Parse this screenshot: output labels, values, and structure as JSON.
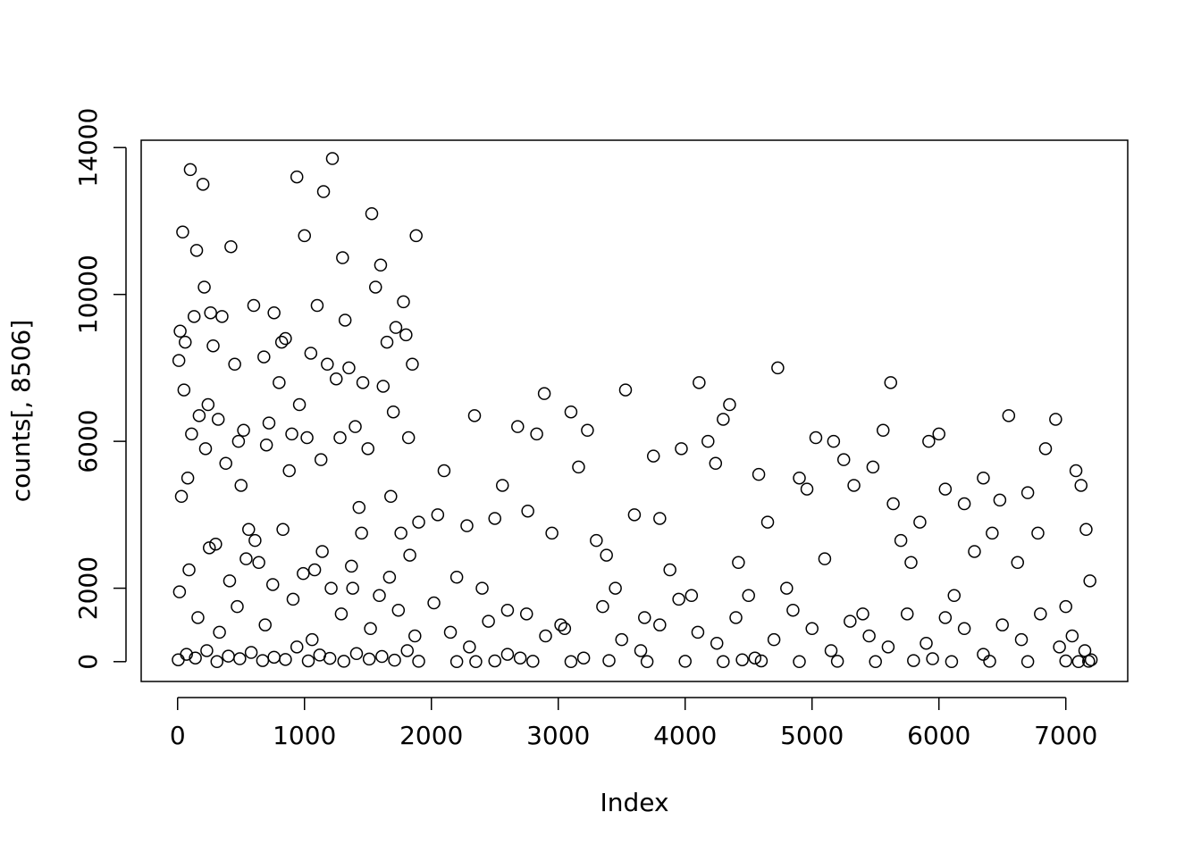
{
  "chart_data": {
    "type": "scatter",
    "x_label": "Index",
    "y_label": "counts[, 8506]",
    "xlim": [
      -287,
      7488
    ],
    "ylim": [
      -540,
      14200
    ],
    "xticks": [
      0,
      1000,
      2000,
      3000,
      4000,
      5000,
      6000,
      7000
    ],
    "yticks": [
      0,
      2000,
      6000,
      10000,
      14000
    ],
    "color": "#000000",
    "x": [
      10,
      20,
      30,
      40,
      50,
      60,
      80,
      100,
      110,
      130,
      150,
      170,
      200,
      210,
      220,
      240,
      260,
      280,
      300,
      320,
      350,
      380,
      420,
      450,
      480,
      500,
      520,
      560,
      600,
      640,
      680,
      700,
      720,
      760,
      800,
      820,
      850,
      880,
      900,
      940,
      960,
      1000,
      1020,
      1050,
      1080,
      1100,
      1130,
      1150,
      1180,
      1220,
      1250,
      1280,
      1300,
      1320,
      1350,
      1380,
      1400,
      1430,
      1460,
      1500,
      1530,
      1560,
      1600,
      1620,
      1650,
      1680,
      1700,
      1720,
      1760,
      1780,
      1800,
      1820,
      1850,
      1880,
      1900,
      15,
      90,
      160,
      250,
      330,
      410,
      470,
      540,
      610,
      690,
      750,
      830,
      910,
      990,
      1060,
      1140,
      1210,
      1290,
      1370,
      1450,
      1520,
      1590,
      1670,
      1740,
      1830,
      1870,
      5,
      70,
      140,
      230,
      310,
      400,
      490,
      580,
      670,
      760,
      850,
      940,
      1030,
      1120,
      1200,
      1310,
      1410,
      1510,
      1610,
      1710,
      1810,
      1900,
      2050,
      2100,
      2200,
      2280,
      2340,
      2400,
      2500,
      2560,
      2600,
      2680,
      2760,
      2830,
      2890,
      2950,
      3020,
      3100,
      3160,
      3230,
      3300,
      3380,
      3450,
      3530,
      3600,
      3680,
      3750,
      3800,
      3880,
      3970,
      4050,
      4110,
      4180,
      4240,
      4300,
      4350,
      4420,
      4500,
      4580,
      4650,
      4730,
      4800,
      4900,
      4960,
      5030,
      5100,
      5170,
      5250,
      5330,
      5400,
      5480,
      5560,
      5620,
      5640,
      5700,
      5780,
      5850,
      5920,
      6000,
      6050,
      6120,
      6200,
      6280,
      6350,
      6420,
      6480,
      6550,
      6620,
      6700,
      6780,
      6840,
      6920,
      7000,
      7080,
      7120,
      7160,
      7190,
      2020,
      2150,
      2300,
      2450,
      2600,
      2750,
      2900,
      3050,
      3200,
      3350,
      3500,
      3650,
      3800,
      3950,
      4100,
      4250,
      4400,
      4550,
      4700,
      4850,
      5000,
      5150,
      5300,
      5450,
      5600,
      5750,
      5900,
      6050,
      6200,
      6350,
      6500,
      6650,
      6800,
      6950,
      7050,
      7150,
      7200,
      2700,
      4450,
      5950,
      2200,
      2500,
      2800,
      3100,
      3400,
      3700,
      4000,
      4300,
      4600,
      4900,
      5200,
      5500,
      5800,
      6100,
      6400,
      6700,
      7000,
      7100,
      7180,
      2350
    ],
    "y": [
      8200,
      9000,
      4500,
      11700,
      7400,
      8700,
      5000,
      13400,
      6200,
      9400,
      11200,
      6700,
      13000,
      10200,
      5800,
      7000,
      9500,
      8600,
      3200,
      6600,
      9400,
      5400,
      11300,
      8100,
      6000,
      4800,
      6300,
      3600,
      9700,
      2700,
      8300,
      5900,
      6500,
      9500,
      7600,
      8700,
      8800,
      5200,
      6200,
      13200,
      7000,
      11600,
      6100,
      8400,
      2500,
      9700,
      5500,
      12800,
      8100,
      13700,
      7700,
      6100,
      11000,
      9300,
      8000,
      2000,
      6400,
      4200,
      7600,
      5800,
      12200,
      10200,
      10800,
      7500,
      8700,
      4500,
      6800,
      9100,
      3500,
      9800,
      8900,
      6100,
      8100,
      11600,
      3800,
      1900,
      2500,
      1200,
      3100,
      800,
      2200,
      1500,
      2800,
      3300,
      1000,
      2100,
      3600,
      1700,
      2400,
      600,
      3000,
      2000,
      1300,
      2600,
      3500,
      900,
      1800,
      2300,
      1400,
      2900,
      700,
      50,
      200,
      100,
      300,
      0,
      150,
      80,
      250,
      30,
      120,
      60,
      400,
      20,
      180,
      90,
      10,
      220,
      70,
      140,
      40,
      300,
      10,
      4000,
      5200,
      2300,
      3700,
      6700,
      2000,
      3900,
      4800,
      1400,
      6400,
      4100,
      6200,
      7300,
      3500,
      1000,
      6800,
      5300,
      6300,
      3300,
      2900,
      2000,
      7400,
      4000,
      1200,
      5600,
      3900,
      2500,
      5800,
      1800,
      7600,
      6000,
      5400,
      6600,
      7000,
      2700,
      1800,
      5100,
      3800,
      8000,
      2000,
      5000,
      4700,
      6100,
      2800,
      6000,
      5500,
      4800,
      1300,
      5300,
      6300,
      7600,
      4300,
      3300,
      2700,
      3800,
      6000,
      6200,
      4700,
      1800,
      4300,
      3000,
      5000,
      3500,
      4400,
      6700,
      2700,
      4600,
      3500,
      5800,
      6600,
      1500,
      5200,
      4800,
      3600,
      2200,
      1600,
      800,
      400,
      1100,
      200,
      1300,
      700,
      900,
      100,
      1500,
      600,
      300,
      1000,
      1700,
      800,
      500,
      1200,
      100,
      600,
      1400,
      900,
      300,
      1100,
      700,
      400,
      1300,
      500,
      1200,
      900,
      200,
      1000,
      600,
      1300,
      400,
      700,
      300,
      50,
      100,
      50,
      80,
      0,
      20,
      10,
      0,
      30,
      0,
      10,
      0,
      20,
      0,
      10,
      0,
      30,
      0,
      10,
      0,
      20,
      0,
      10,
      0
    ]
  }
}
